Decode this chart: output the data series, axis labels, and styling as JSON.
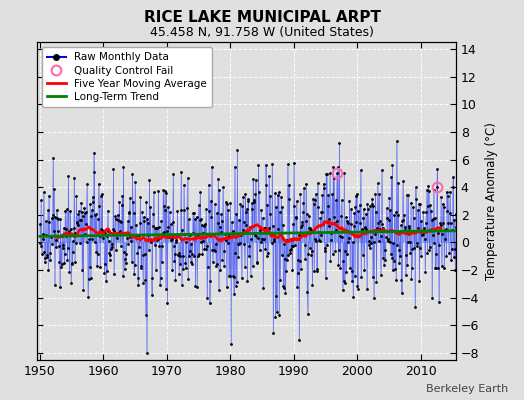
{
  "title": "RICE LAKE MUNICIPAL ARPT",
  "subtitle": "45.458 N, 91.758 W (United States)",
  "ylabel": "Temperature Anomaly (°C)",
  "credit": "Berkeley Earth",
  "ylim": [
    -8.5,
    14.5
  ],
  "xlim": [
    1949.5,
    2015.5
  ],
  "yticks": [
    -8,
    -6,
    -4,
    -2,
    0,
    2,
    4,
    6,
    8,
    10,
    12,
    14
  ],
  "xticks": [
    1950,
    1960,
    1970,
    1980,
    1990,
    2000,
    2010
  ],
  "background_color": "#e0e0e0",
  "raw_color": "#7799ee",
  "qc_fail_color": "#ff69b4",
  "qc_fail_points": [
    [
      1996.75,
      5.0
    ],
    [
      2012.5,
      4.0
    ]
  ],
  "seed": 42
}
